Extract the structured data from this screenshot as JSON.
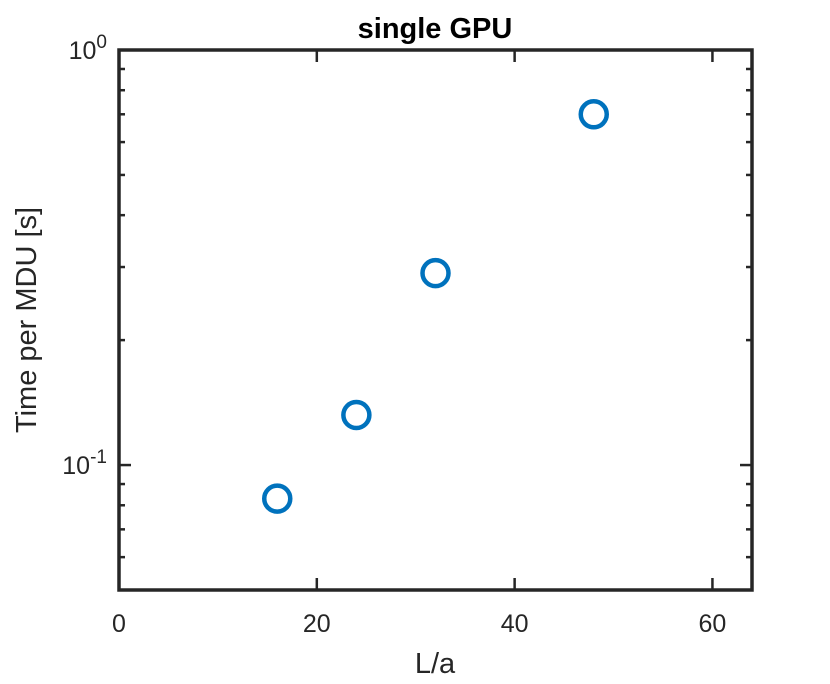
{
  "chart_data": {
    "type": "scatter",
    "title": "single GPU",
    "xlabel": "L/a",
    "ylabel": "Time per MDU [s]",
    "xlim": [
      0,
      64
    ],
    "ylim": [
      0.05,
      1
    ],
    "yscale": "log",
    "grid": false,
    "x_ticks": [
      {
        "value": 0,
        "label": "0"
      },
      {
        "value": 20,
        "label": "20"
      },
      {
        "value": 40,
        "label": "40"
      },
      {
        "value": 60,
        "label": "60"
      }
    ],
    "y_ticks": [
      {
        "value": 0.1,
        "base": "10",
        "exp": "-1"
      },
      {
        "value": 1,
        "base": "10",
        "exp": "0"
      }
    ],
    "marker_color": "#0072BD",
    "series": [
      {
        "x": [
          16,
          24,
          32,
          48
        ],
        "y": [
          0.083,
          0.132,
          0.29,
          0.7
        ]
      }
    ]
  }
}
